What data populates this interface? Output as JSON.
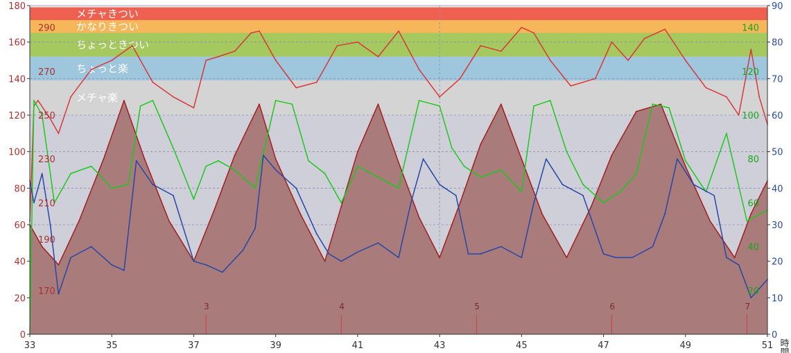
{
  "chart_data": {
    "type": "line",
    "x_axis": {
      "range": [
        33,
        51
      ],
      "ticks": [
        "33",
        "35",
        "37",
        "39",
        "41",
        "43",
        "45",
        "47",
        "49",
        "51"
      ],
      "unit_label": "時間"
    },
    "y_left": {
      "range": [
        0,
        180
      ],
      "ticks": [
        "0",
        "20",
        "40",
        "60",
        "80",
        "100",
        "120",
        "140",
        "160",
        "180"
      ]
    },
    "y_right": {
      "range": [
        0,
        90
      ],
      "ticks": [
        "0",
        "10",
        "20",
        "30",
        "40",
        "50",
        "60",
        "70",
        "80",
        "90"
      ]
    },
    "inner_left_scale": {
      "ticks": [
        "170",
        "190",
        "210",
        "230",
        "250",
        "270",
        "290"
      ],
      "at_left_values": [
        24,
        52,
        72,
        96,
        120,
        144,
        168
      ],
      "color": "#a83030"
    },
    "inner_right_scale": {
      "ticks": [
        "20",
        "40",
        "60",
        "80",
        "100",
        "120",
        "140"
      ],
      "at_left_values": [
        24,
        48,
        72,
        96,
        120,
        144,
        168
      ],
      "color": "#1aa51a"
    },
    "zones": [
      {
        "label": "メチャきつい",
        "from": 172,
        "to": 179,
        "color": "#f06050"
      },
      {
        "label": "かなりきつい",
        "from": 165,
        "to": 172,
        "color": "#f5b75a"
      },
      {
        "label": "ちょっときつい",
        "from": 152,
        "to": 165,
        "color": "#a5c85f"
      },
      {
        "label": "ちょっと楽",
        "from": 139,
        "to": 152,
        "color": "#9ec6dc"
      },
      {
        "label": "メチャ楽",
        "from": 120,
        "to": 139,
        "color": "#d4d4d4"
      }
    ],
    "laps": [
      {
        "label": "3",
        "x": 37.3
      },
      {
        "label": "4",
        "x": 40.6
      },
      {
        "label": "5",
        "x": 43.9
      },
      {
        "label": "6",
        "x": 47.2
      },
      {
        "label": "7",
        "x": 50.5
      }
    ],
    "series": [
      {
        "color": "#a02020",
        "fill": "#a97b7b",
        "x": [
          33,
          33.3,
          33.7,
          34.2,
          34.8,
          35.3,
          35.8,
          36.4,
          37.0,
          37.5,
          38.0,
          38.6,
          39.0,
          39.6,
          40.2,
          40.6,
          41.0,
          41.5,
          42.0,
          42.5,
          43.0,
          43.5,
          44.0,
          44.5,
          45.0,
          45.5,
          46.1,
          46.7,
          47.2,
          47.8,
          48.4,
          49.0,
          49.6,
          50.2,
          50.6,
          51.0
        ],
        "values": [
          60,
          48,
          38,
          62,
          96,
          128,
          96,
          62,
          40,
          68,
          98,
          126,
          96,
          66,
          40,
          70,
          100,
          126,
          94,
          64,
          42,
          72,
          104,
          126,
          96,
          66,
          42,
          70,
          98,
          122,
          126,
          92,
          62,
          42,
          66,
          84
        ]
      },
      {
        "color": "#d83838",
        "x": [
          33,
          33.1,
          33.2,
          33.5,
          33.7,
          34.0,
          34.5,
          35.0,
          35.5,
          36.0,
          36.5,
          37.0,
          37.3,
          37.6,
          38.0,
          38.4,
          38.6,
          39.0,
          39.5,
          40.0,
          40.5,
          41.0,
          41.5,
          42.0,
          42.5,
          43.0,
          43.5,
          44.0,
          44.5,
          45.0,
          45.3,
          45.7,
          46.2,
          46.8,
          47.2,
          47.6,
          48.0,
          48.5,
          49.0,
          49.5,
          50.0,
          50.3,
          50.6,
          50.8,
          51.0
        ],
        "values": [
          62,
          125,
          128,
          118,
          110,
          130,
          145,
          150,
          158,
          138,
          130,
          124,
          150,
          152,
          155,
          165,
          166,
          150,
          135,
          138,
          158,
          160,
          152,
          166,
          145,
          130,
          140,
          158,
          155,
          168,
          165,
          150,
          136,
          140,
          160,
          150,
          162,
          167,
          150,
          135,
          130,
          120,
          156,
          130,
          115
        ]
      },
      {
        "color": "#1cc81c",
        "x": [
          33,
          33.1,
          33.3,
          33.6,
          34.0,
          34.5,
          35.0,
          35.4,
          35.7,
          36.0,
          36.5,
          37.0,
          37.3,
          37.6,
          38.0,
          38.5,
          39.0,
          39.4,
          39.8,
          40.2,
          40.6,
          41.0,
          41.5,
          42.0,
          42.5,
          43.0,
          43.3,
          43.6,
          44.0,
          44.5,
          45.0,
          45.3,
          45.7,
          46.1,
          46.5,
          47.0,
          47.4,
          47.8,
          48.2,
          48.6,
          49.0,
          49.5,
          50.0,
          50.5,
          51.0
        ],
        "values": [
          0,
          128,
          120,
          72,
          88,
          92,
          80,
          82,
          125,
          128,
          102,
          74,
          92,
          95,
          90,
          80,
          128,
          126,
          95,
          88,
          72,
          92,
          86,
          80,
          128,
          125,
          102,
          92,
          86,
          90,
          78,
          125,
          128,
          100,
          82,
          72,
          78,
          88,
          126,
          124,
          95,
          78,
          110,
          62,
          68
        ]
      },
      {
        "color": "#2646a6",
        "x": [
          33,
          33.1,
          33.3,
          33.5,
          33.7,
          34.0,
          34.5,
          35.0,
          35.3,
          35.6,
          36.0,
          36.5,
          37.0,
          37.3,
          37.7,
          38.2,
          38.5,
          38.7,
          39.0,
          39.5,
          40.0,
          40.3,
          40.6,
          41.0,
          41.5,
          42.0,
          42.3,
          42.6,
          43.0,
          43.4,
          43.7,
          44.0,
          44.5,
          45.0,
          45.3,
          45.6,
          46.0,
          46.5,
          47.0,
          47.3,
          47.7,
          48.2,
          48.5,
          48.8,
          49.2,
          49.7,
          50.0,
          50.3,
          50.6,
          51.0
        ],
        "values": [
          84,
          72,
          88,
          60,
          22,
          42,
          48,
          38,
          35,
          95,
          82,
          76,
          40,
          38,
          34,
          46,
          58,
          98,
          90,
          80,
          55,
          44,
          40,
          45,
          50,
          42,
          72,
          96,
          82,
          76,
          44,
          44,
          48,
          42,
          72,
          96,
          82,
          76,
          44,
          42,
          42,
          48,
          66,
          96,
          82,
          76,
          42,
          38,
          20,
          30
        ]
      }
    ]
  }
}
